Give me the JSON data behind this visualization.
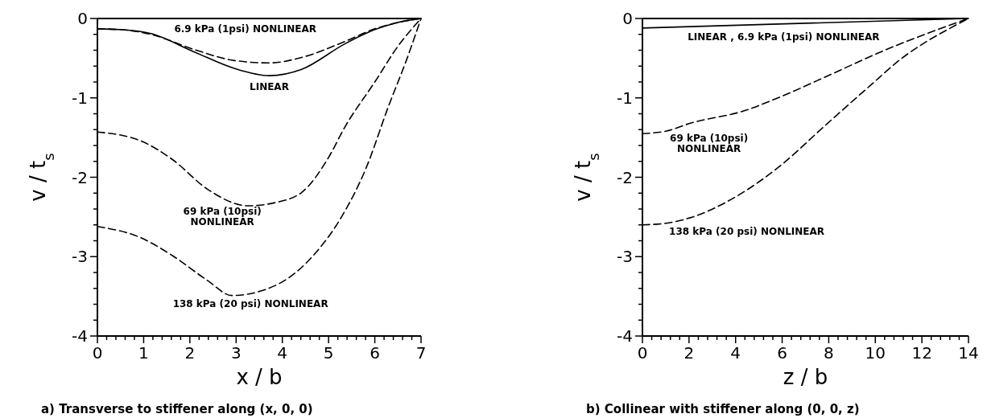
{
  "chart_data": [
    {
      "type": "line",
      "title": "a) Transverse to stiffener along (x, 0, 0)",
      "xlabel": "x / b",
      "ylabel": "v / t$_{s}$",
      "xlim": [
        0,
        7
      ],
      "ylim": [
        -4,
        0
      ],
      "xticks": [
        0,
        {
          "value": 0.2,
          "label": null
        },
        {
          "value": 0.4,
          "label": null
        },
        {
          "value": 0.6,
          "label": null
        },
        {
          "value": 0.8,
          "label": null
        },
        1,
        {
          "value": 1.2,
          "label": null
        },
        {
          "value": 1.4,
          "label": null
        },
        {
          "value": 1.6,
          "label": null
        },
        {
          "value": 1.8,
          "label": null
        },
        2,
        {
          "value": 2.2,
          "label": null
        },
        {
          "value": 2.4,
          "label": null
        },
        {
          "value": 2.6,
          "label": null
        },
        {
          "value": 2.8,
          "label": null
        },
        3,
        {
          "value": 3.2,
          "label": null
        },
        {
          "value": 3.4,
          "label": null
        },
        {
          "value": 3.6,
          "label": null
        },
        {
          "value": 3.8,
          "label": null
        },
        4,
        {
          "value": 4.2,
          "label": null
        },
        {
          "value": 4.4,
          "label": null
        },
        {
          "value": 4.6,
          "label": null
        },
        {
          "value": 4.8,
          "label": null
        },
        5,
        {
          "value": 5.2,
          "label": null
        },
        {
          "value": 5.4,
          "label": null
        },
        {
          "value": 5.6,
          "label": null
        },
        {
          "value": 5.8,
          "label": null
        },
        6,
        {
          "value": 6.2,
          "label": null
        },
        {
          "value": 6.4,
          "label": null
        },
        {
          "value": 6.6,
          "label": null
        },
        {
          "value": 6.8,
          "label": null
        },
        7
      ],
      "yticks": [
        -4,
        {
          "value": -3.8,
          "label": null
        },
        {
          "value": -3.6,
          "label": null
        },
        {
          "value": -3.4,
          "label": null
        },
        {
          "value": -3.2,
          "label": null
        },
        -3,
        {
          "value": -2.8,
          "label": null
        },
        {
          "value": -2.6,
          "label": null
        },
        {
          "value": -2.4,
          "label": null
        },
        {
          "value": -2.2,
          "label": null
        },
        -2,
        {
          "value": -1.8,
          "label": null
        },
        {
          "value": -1.6,
          "label": null
        },
        {
          "value": -1.4,
          "label": null
        },
        {
          "value": -1.2,
          "label": null
        },
        -1,
        {
          "value": -0.8,
          "label": null
        },
        {
          "value": -0.6,
          "label": null
        },
        {
          "value": -0.4,
          "label": null
        },
        {
          "value": -0.2,
          "label": null
        },
        0
      ],
      "series": [
        {
          "name": "LINEAR",
          "color": "#000000",
          "line_style": "solid",
          "x": [
            0,
            0.5,
            1.16,
            2.09,
            2.97,
            3.72,
            4.42,
            5.35,
            6,
            6.5,
            7
          ],
          "values": [
            -0.13,
            -0.14,
            -0.19,
            -0.42,
            -0.63,
            -0.72,
            -0.64,
            -0.32,
            -0.14,
            -0.05,
            0
          ]
        },
        {
          "name": "6.9 kPa (1psi) NONLINEAR",
          "color": "#000000",
          "line_style": "dashed",
          "x": [
            0,
            0.5,
            1.16,
            2.09,
            2.97,
            3.72,
            4.42,
            5.35,
            6,
            6.5,
            7
          ],
          "values": [
            -0.13,
            -0.14,
            -0.2,
            -0.39,
            -0.53,
            -0.56,
            -0.49,
            -0.29,
            -0.13,
            -0.05,
            0
          ]
        },
        {
          "name": "69 kPa (10psi)\nNONLINEAR",
          "color": "#000000",
          "line_style": "dashed",
          "x": [
            0,
            0.93,
            1.63,
            2.38,
            3.26,
            3.84,
            4.42,
            5,
            5.35,
            6,
            6.5,
            7
          ],
          "values": [
            -1.43,
            -1.54,
            -1.78,
            -2.15,
            -2.36,
            -2.32,
            -2.19,
            -1.75,
            -1.37,
            -0.8,
            -0.35,
            0
          ]
        },
        {
          "name": "138 kPa (20 psi) NONLINEAR",
          "color": "#000000",
          "line_style": "dashed",
          "x": [
            0,
            0.93,
            1.63,
            2.38,
            2.91,
            3.55,
            4.13,
            4.71,
            5.29,
            5.8,
            6.3,
            6.7,
            7
          ],
          "values": [
            -2.62,
            -2.76,
            -2.99,
            -3.3,
            -3.49,
            -3.43,
            -3.27,
            -2.96,
            -2.49,
            -1.9,
            -1.1,
            -0.5,
            0
          ]
        }
      ]
    },
    {
      "type": "line",
      "title": "b) Collinear with stiffener along (0, 0, z)",
      "xlabel": "z / b",
      "ylabel": "v / t$_{s}$",
      "xlim": [
        0,
        14
      ],
      "ylim": [
        -4,
        0
      ],
      "xticks": [
        0,
        {
          "value": 0.4,
          "label": null
        },
        {
          "value": 0.8,
          "label": null
        },
        {
          "value": 1.2,
          "label": null
        },
        {
          "value": 1.6,
          "label": null
        },
        2,
        {
          "value": 2.4,
          "label": null
        },
        {
          "value": 2.8,
          "label": null
        },
        {
          "value": 3.2,
          "label": null
        },
        {
          "value": 3.6,
          "label": null
        },
        4,
        {
          "value": 4.4,
          "label": null
        },
        {
          "value": 4.8,
          "label": null
        },
        {
          "value": 5.2,
          "label": null
        },
        {
          "value": 5.6,
          "label": null
        },
        6,
        {
          "value": 6.4,
          "label": null
        },
        {
          "value": 6.8,
          "label": null
        },
        {
          "value": 7.2,
          "label": null
        },
        {
          "value": 7.6,
          "label": null
        },
        8,
        {
          "value": 8.4,
          "label": null
        },
        {
          "value": 8.8,
          "label": null
        },
        {
          "value": 9.2,
          "label": null
        },
        {
          "value": 9.6,
          "label": null
        },
        10,
        {
          "value": 10.4,
          "label": null
        },
        {
          "value": 10.8,
          "label": null
        },
        {
          "value": 11.2,
          "label": null
        },
        {
          "value": 11.6,
          "label": null
        },
        12,
        {
          "value": 12.4,
          "label": null
        },
        {
          "value": 12.8,
          "label": null
        },
        {
          "value": 13.2,
          "label": null
        },
        {
          "value": 13.6,
          "label": null
        },
        14
      ],
      "yticks": [
        -4,
        {
          "value": -3.8,
          "label": null
        },
        {
          "value": -3.6,
          "label": null
        },
        {
          "value": -3.4,
          "label": null
        },
        {
          "value": -3.2,
          "label": null
        },
        -3,
        {
          "value": -2.8,
          "label": null
        },
        {
          "value": -2.6,
          "label": null
        },
        {
          "value": -2.4,
          "label": null
        },
        {
          "value": -2.2,
          "label": null
        },
        -2,
        {
          "value": -1.8,
          "label": null
        },
        {
          "value": -1.6,
          "label": null
        },
        {
          "value": -1.4,
          "label": null
        },
        {
          "value": -1.2,
          "label": null
        },
        -1,
        {
          "value": -0.8,
          "label": null
        },
        {
          "value": -0.6,
          "label": null
        },
        {
          "value": -0.4,
          "label": null
        },
        {
          "value": -0.2,
          "label": null
        },
        0
      ],
      "series": [
        {
          "name": "LINEAR , 6.9 kPa (1psi) NONLINEAR",
          "color": "#000000",
          "line_style": "solid",
          "x": [
            0,
            14
          ],
          "values": [
            -0.12,
            0
          ]
        },
        {
          "name": "69 kPa (10psi)\nNONLINEAR",
          "color": "#000000",
          "line_style": "dashed",
          "x": [
            0,
            1,
            2.05,
            4.4,
            5.9,
            8.2,
            10.4,
            12.4,
            14
          ],
          "values": [
            -1.45,
            -1.42,
            -1.32,
            -1.16,
            -0.99,
            -0.69,
            -0.4,
            -0.17,
            0
          ]
        },
        {
          "name": "138 kPa (20 psi) NONLINEAR",
          "color": "#000000",
          "line_style": "dashed",
          "x": [
            0,
            1,
            2.05,
            4.1,
            5.9,
            7.8,
            9.8,
            11.1,
            12.2,
            13.1,
            14
          ],
          "values": [
            -2.6,
            -2.58,
            -2.51,
            -2.23,
            -1.86,
            -1.36,
            -0.84,
            -0.51,
            -0.29,
            -0.14,
            0
          ]
        }
      ]
    }
  ]
}
